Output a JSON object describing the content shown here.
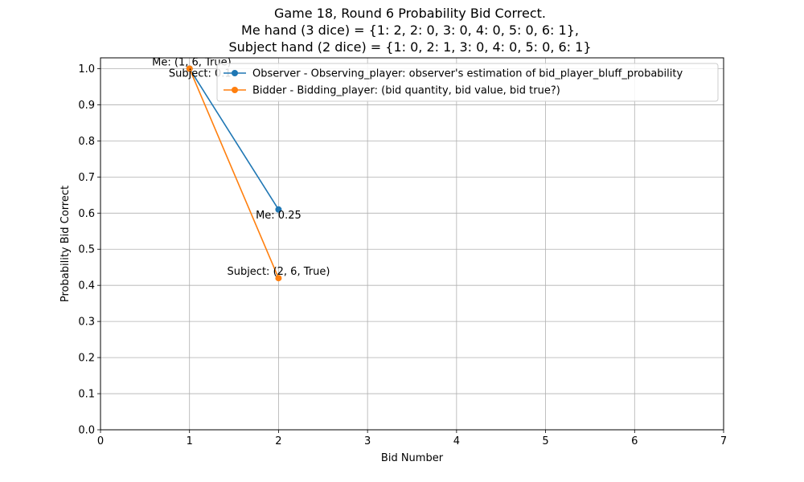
{
  "chart_data": {
    "type": "line",
    "title_lines": [
      "Game 18, Round 6 Probability Bid Correct.",
      "Me hand (3 dice) = {1: 2, 2: 0, 3: 0, 4: 0, 5: 0, 6: 1},",
      "Subject hand (2 dice) = {1: 0, 2: 1, 3: 0, 4: 0, 5: 0, 6: 1}"
    ],
    "xlabel": "Bid Number",
    "ylabel": "Probability Bid Correct",
    "xlim": [
      0,
      7
    ],
    "ylim": [
      0,
      1.03
    ],
    "xticks": [
      "0",
      "1",
      "2",
      "3",
      "4",
      "5",
      "6",
      "7"
    ],
    "yticks": [
      "0.0",
      "0.1",
      "0.2",
      "0.3",
      "0.4",
      "0.5",
      "0.6",
      "0.7",
      "0.8",
      "0.9",
      "1.0"
    ],
    "grid": true,
    "legend_position": "top-right",
    "series": [
      {
        "name": "Observer - Observing_player: observer's estimation of bid_player_bluff_probability",
        "color": "#1f77b4",
        "x": [
          1,
          2
        ],
        "y": [
          1.0,
          0.61
        ]
      },
      {
        "name": "Bidder -  Bidding_player: (bid quantity, bid value, bid true?)",
        "color": "#ff7f0e",
        "x": [
          1,
          2
        ],
        "y": [
          1.0,
          0.42
        ]
      }
    ],
    "annotations": [
      {
        "text": "Me: (1, 6, True)",
        "x": 1,
        "y": 1.0,
        "anchor": "end",
        "position": "above"
      },
      {
        "text": "Subject: 0.1",
        "x": 1,
        "y": 1.0,
        "anchor": "end",
        "position": "below"
      },
      {
        "text": "Me: 0.25",
        "x": 2,
        "y": 0.61,
        "anchor": "middle",
        "position": "below"
      },
      {
        "text": "Subject: (2, 6, True)",
        "x": 2,
        "y": 0.42,
        "anchor": "middle",
        "position": "above"
      }
    ]
  }
}
